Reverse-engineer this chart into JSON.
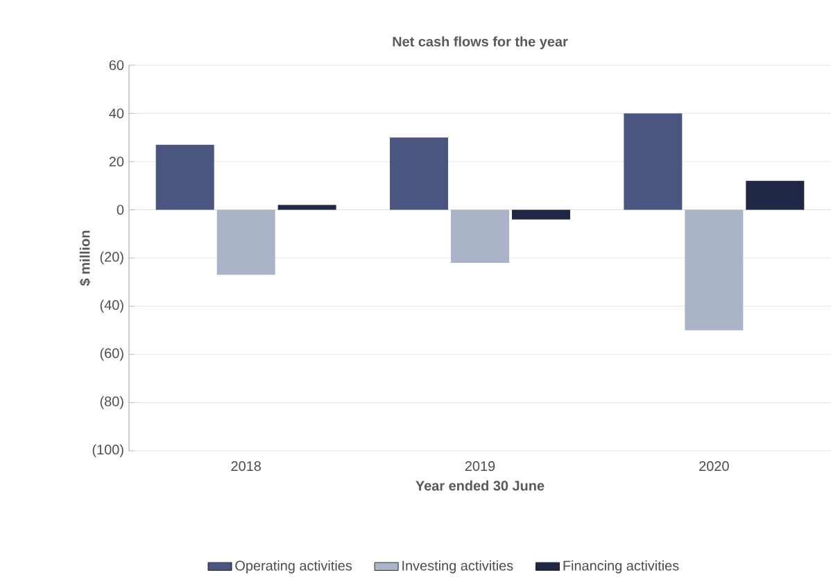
{
  "chart_data": {
    "type": "bar",
    "title": "Net cash flows for the year",
    "xlabel": "Year ended 30 June",
    "ylabel": "$ million",
    "categories": [
      "2018",
      "2019",
      "2020"
    ],
    "series": [
      {
        "name": "Operating activities",
        "color": "#4a5680",
        "values": [
          27,
          30,
          40
        ]
      },
      {
        "name": "Investing activities",
        "color": "#aab3c8",
        "values": [
          -27,
          -22,
          -50
        ]
      },
      {
        "name": "Financing activities",
        "color": "#1f2744",
        "values": [
          2,
          -4,
          12
        ]
      }
    ],
    "ylim": [
      -100,
      60
    ],
    "yticks": [
      60,
      40,
      20,
      0,
      {
        "value": -20,
        "label": "(20)"
      },
      {
        "value": -40,
        "label": "(40)"
      },
      {
        "value": -60,
        "label": "(60)"
      },
      {
        "value": -80,
        "label": "(80)"
      },
      {
        "value": -100,
        "label": "(100)"
      }
    ],
    "grid": "y",
    "legend": "bottom"
  }
}
